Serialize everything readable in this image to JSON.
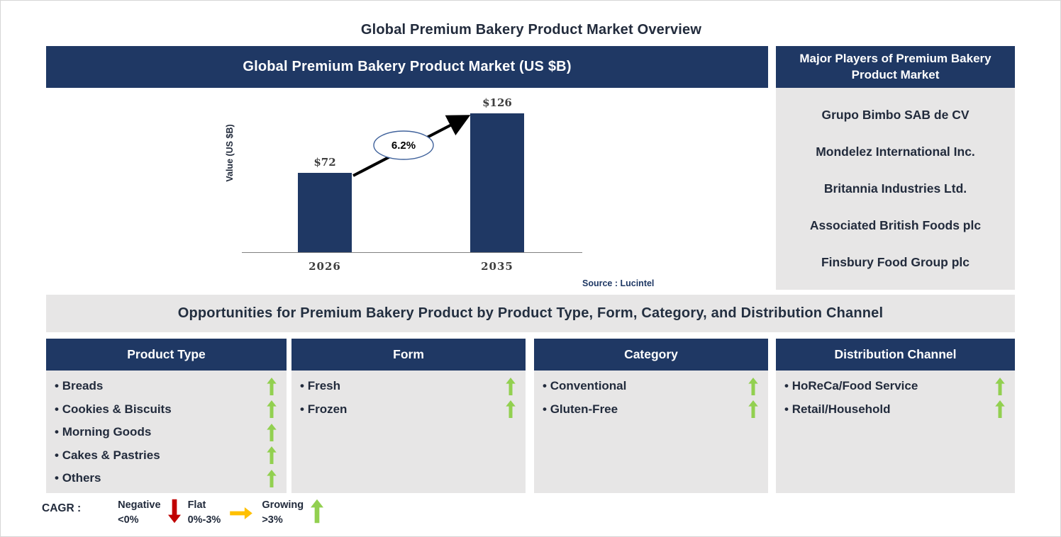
{
  "page": {
    "title": "Global Premium Bakery Product Market Overview"
  },
  "chart": {
    "header": "Global Premium Bakery Product Market (US $B)",
    "source": "Source : Lucintel"
  },
  "chart_data": {
    "type": "bar",
    "title": "Global Premium Bakery Product Market (US $B)",
    "categories": [
      "2026",
      "2035"
    ],
    "values": [
      72,
      126
    ],
    "value_labels": [
      "$72",
      "$126"
    ],
    "ylabel": "Value (US $B)",
    "xlabel": "",
    "ylim": [
      0,
      130
    ],
    "grid": false,
    "cagr": "6.2%",
    "annotation": "CAGR 6.2% growth arrow from 2026 bar to 2035 bar",
    "bar_color": "#1F3864"
  },
  "players": {
    "header": "Major Players of Premium Bakery Product Market",
    "companies": [
      "Grupo Bimbo SAB de CV",
      "Mondelez International Inc.",
      "Britannia Industries Ltd.",
      "Associated British Foods plc",
      "Finsbury Food Group plc"
    ]
  },
  "opportunities": {
    "title": "Opportunities for Premium Bakery Product by Product Type, Form, Category, and Distribution Channel",
    "columns": [
      {
        "header": "Product Type",
        "items": [
          "Breads",
          "Cookies & Biscuits",
          "Morning Goods",
          "Cakes & Pastries",
          "Others"
        ],
        "trends": [
          "growing",
          "growing",
          "growing",
          "growing",
          "growing"
        ]
      },
      {
        "header": "Form",
        "items": [
          "Fresh",
          "Frozen"
        ],
        "trends": [
          "growing",
          "growing"
        ]
      },
      {
        "header": "Category",
        "items": [
          "Conventional",
          "Gluten-Free"
        ],
        "trends": [
          "growing",
          "growing"
        ]
      },
      {
        "header": "Distribution Channel",
        "items": [
          "HoReCa/Food Service",
          "Retail/Household"
        ],
        "trends": [
          "growing",
          "growing"
        ]
      }
    ]
  },
  "legend": {
    "label": "CAGR :",
    "entries": [
      {
        "name": "Negative",
        "range": "<0%",
        "icon": "down-arrow",
        "color": "#C00000"
      },
      {
        "name": "Flat",
        "range": "0%-3%",
        "icon": "right-arrow",
        "color": "#FFC000"
      },
      {
        "name": "Growing",
        "range": ">3%",
        "icon": "up-arrow",
        "color": "#92D050"
      }
    ]
  },
  "colors": {
    "navy": "#1F3864",
    "panel_gray": "#E7E6E6",
    "text_dark": "#222B3C",
    "growing_green": "#92D050",
    "negative_red": "#C00000",
    "flat_amber": "#FFC000",
    "oval_stroke": "#41639C"
  }
}
